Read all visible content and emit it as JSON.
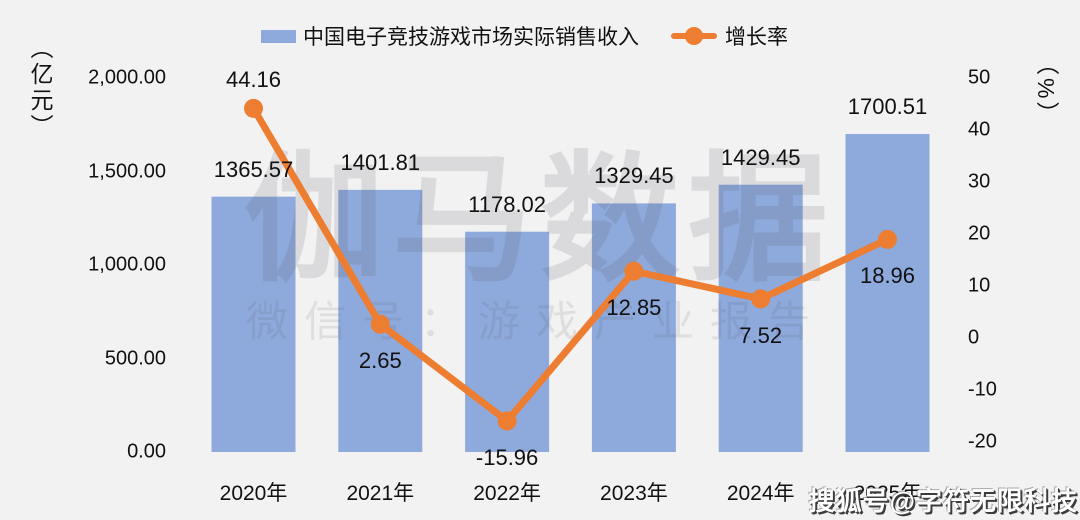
{
  "colors": {
    "background": "#f2f2f2",
    "bar": "#8EA9DB",
    "line": "#ED7D31",
    "text": "#111111"
  },
  "watermarks": {
    "center_title": "伽马数据",
    "center_subtitle": "微信号：游戏产业报告",
    "bottom_right": "搜狐号@字符无限科技"
  },
  "chart_data": {
    "type": "bar",
    "subtype": "combo-bar-line",
    "categories": [
      "2020年",
      "2021年",
      "2022年",
      "2023年",
      "2024年",
      "2025年"
    ],
    "series": [
      {
        "name": "中国电子竞技游戏市场实际销售收入",
        "type": "bar",
        "axis": "left",
        "color": "#8EA9DB",
        "values": [
          1365.57,
          1401.81,
          1178.02,
          1329.45,
          1429.45,
          1700.51
        ]
      },
      {
        "name": "增长率",
        "type": "line",
        "axis": "right",
        "color": "#ED7D31",
        "values": [
          44.16,
          2.65,
          -15.96,
          12.85,
          7.52,
          18.96
        ]
      }
    ],
    "left_axis": {
      "unit": "（亿元）",
      "ticks": [
        "2,000.00",
        "1,500.00",
        "1,000.00",
        "500.00",
        "0.00"
      ],
      "range": [
        0,
        2000
      ]
    },
    "right_axis": {
      "unit": "（%）",
      "ticks": [
        "50",
        "40",
        "30",
        "20",
        "10",
        "0",
        "-10",
        "-20"
      ],
      "range": [
        -20,
        50
      ]
    },
    "grid": false,
    "legend_position": "top",
    "title": ""
  }
}
